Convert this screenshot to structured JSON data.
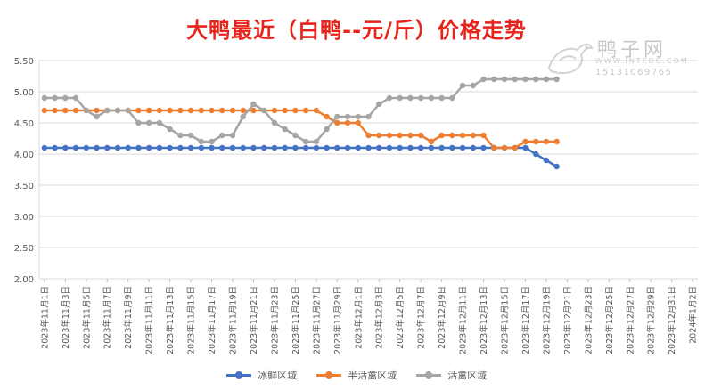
{
  "title": "大鸭最近（白鸭--元/斤）价格走势",
  "watermark": {
    "name": "鸭子网",
    "site": "WWW.INTEDC.COM",
    "phone": "15131069765"
  },
  "chart_data": {
    "type": "line",
    "title": "大鸭最近（白鸭--元/斤）价格走势",
    "ylim": [
      2.0,
      5.5
    ],
    "y_ticks": [
      "2.00",
      "2.50",
      "3.00",
      "3.50",
      "4.00",
      "4.50",
      "5.00",
      "5.50"
    ],
    "grid": true,
    "legend_position": "bottom",
    "x_tick_labels": [
      "2023年11月1日",
      "2023年11月3日",
      "2023年11月5日",
      "2023年11月7日",
      "2023年11月9日",
      "2023年11月11日",
      "2023年11月13日",
      "2023年11月15日",
      "2023年11月17日",
      "2023年11月19日",
      "2023年11月21日",
      "2023年11月23日",
      "2023年11月25日",
      "2023年11月27日",
      "2023年11月29日",
      "2023年12月1日",
      "2023年12月3日",
      "2023年12月5日",
      "2023年12月7日",
      "2023年12月9日",
      "2023年12月11日",
      "2023年12月13日",
      "2023年12月15日",
      "2023年12月17日",
      "2023年12月19日",
      "2023年12月21日",
      "2023年12月23日",
      "2023年12月25日",
      "2023年12月27日",
      "2023年12月29日",
      "2023年12月31日",
      "2024年1月2日"
    ],
    "x_start": "2023年11月1日",
    "x_end": "2024年1月2日",
    "series": [
      {
        "name": "冰鲜区域",
        "color": "#4472c4",
        "values": [
          4.1,
          4.1,
          4.1,
          4.1,
          4.1,
          4.1,
          4.1,
          4.1,
          4.1,
          4.1,
          4.1,
          4.1,
          4.1,
          4.1,
          4.1,
          4.1,
          4.1,
          4.1,
          4.1,
          4.1,
          4.1,
          4.1,
          4.1,
          4.1,
          4.1,
          4.1,
          4.1,
          4.1,
          4.1,
          4.1,
          4.1,
          4.1,
          4.1,
          4.1,
          4.1,
          4.1,
          4.1,
          4.1,
          4.1,
          4.1,
          4.1,
          4.1,
          4.1,
          4.1,
          4.1,
          4.1,
          4.1,
          4.0,
          3.9,
          3.8
        ]
      },
      {
        "name": "半活禽区域",
        "color": "#ed7d31",
        "values": [
          4.7,
          4.7,
          4.7,
          4.7,
          4.7,
          4.7,
          4.7,
          4.7,
          4.7,
          4.7,
          4.7,
          4.7,
          4.7,
          4.7,
          4.7,
          4.7,
          4.7,
          4.7,
          4.7,
          4.7,
          4.7,
          4.7,
          4.7,
          4.7,
          4.7,
          4.7,
          4.7,
          4.6,
          4.5,
          4.5,
          4.5,
          4.3,
          4.3,
          4.3,
          4.3,
          4.3,
          4.3,
          4.2,
          4.3,
          4.3,
          4.3,
          4.3,
          4.3,
          4.1,
          4.1,
          4.1,
          4.2,
          4.2,
          4.2,
          4.2
        ]
      },
      {
        "name": "活禽区域",
        "color": "#a5a5a5",
        "values": [
          4.9,
          4.9,
          4.9,
          4.9,
          4.7,
          4.6,
          4.7,
          4.7,
          4.7,
          4.5,
          4.5,
          4.5,
          4.4,
          4.3,
          4.3,
          4.2,
          4.2,
          4.3,
          4.3,
          4.6,
          4.8,
          4.7,
          4.5,
          4.4,
          4.3,
          4.2,
          4.2,
          4.4,
          4.6,
          4.6,
          4.6,
          4.6,
          4.8,
          4.9,
          4.9,
          4.9,
          4.9,
          4.9,
          4.9,
          4.9,
          5.1,
          5.1,
          5.2,
          5.2,
          5.2,
          5.2,
          5.2,
          5.2,
          5.2,
          5.2
        ]
      }
    ]
  }
}
